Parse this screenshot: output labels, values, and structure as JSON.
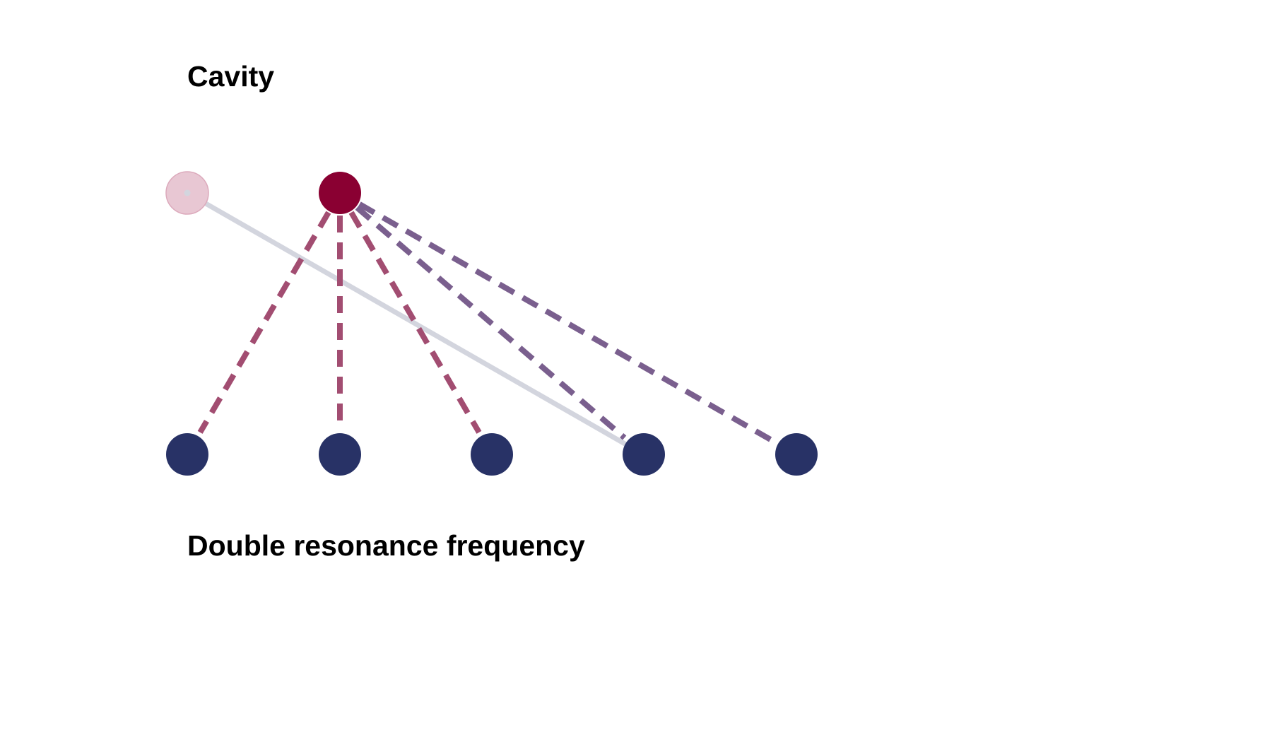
{
  "labels": {
    "top": "Cavity",
    "bottom": "Double resonance frequency"
  },
  "colors": {
    "background": "#ffffff",
    "cavity_ghost_fill": "#e8c7d3",
    "cavity_ghost_stroke": "#dcaabc",
    "cavity_active": "#8a0032",
    "resonance_node": "#283266",
    "dashed_near": "#a24d71",
    "dashed_far": "#7a5f8e",
    "solid_link": "#d3d5de"
  },
  "nodes": {
    "cavity": [
      {
        "id": "cavity-ghost",
        "state": "faded"
      },
      {
        "id": "cavity-active",
        "state": "active"
      }
    ],
    "resonances": [
      "r1",
      "r2",
      "r3",
      "r4",
      "r5"
    ]
  },
  "links": [
    {
      "from": "cavity-active",
      "to": "r1",
      "style": "dashed"
    },
    {
      "from": "cavity-active",
      "to": "r2",
      "style": "dashed"
    },
    {
      "from": "cavity-active",
      "to": "r3",
      "style": "dashed"
    },
    {
      "from": "cavity-active",
      "to": "r4",
      "style": "dashed"
    },
    {
      "from": "cavity-active",
      "to": "r5",
      "style": "dashed"
    },
    {
      "from": "cavity-ghost",
      "to": "r4",
      "style": "solid"
    }
  ]
}
